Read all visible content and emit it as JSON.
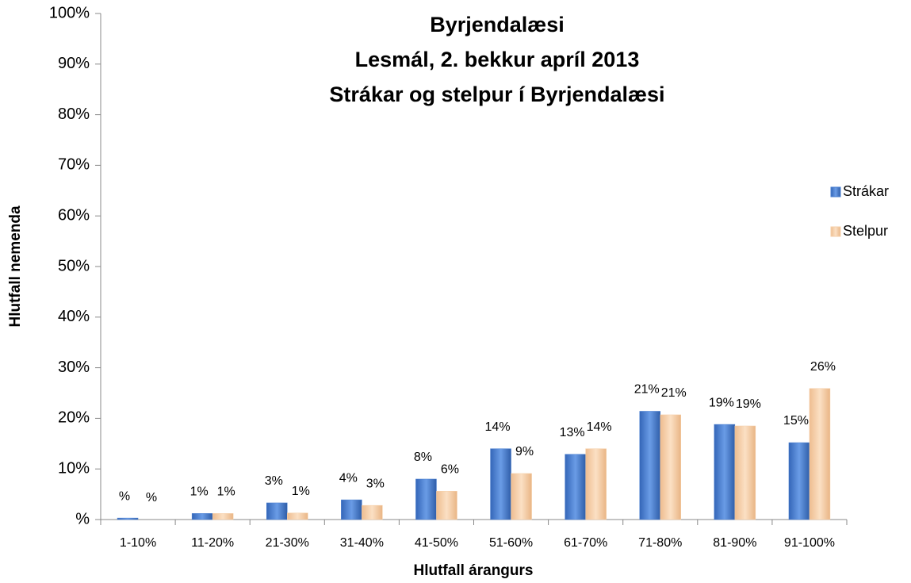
{
  "chart_data": {
    "type": "bar",
    "title": [
      "Byrjendalæsi",
      "Lesmál, 2. bekkur apríl 2013",
      "Strákar og stelpur í Byrjendalæsi"
    ],
    "y_label": "Hlutfall nemenda",
    "x_label": "Hlutfall árangurs",
    "categories": [
      "1-10%",
      "11-20%",
      "21-30%",
      "31-40%",
      "41-50%",
      "51-60%",
      "61-70%",
      "71-80%",
      "81-90%",
      "91-100%"
    ],
    "series": [
      {
        "name": "Strákar",
        "color": "#4a7fd0",
        "values": [
          0.3,
          1.2,
          3.3,
          3.9,
          8.0,
          14.0,
          12.9,
          21.4,
          18.8,
          15.2
        ],
        "value_labels": [
          "%",
          "1%",
          "3%",
          "4%",
          "8%",
          "14%",
          "13%",
          "21%",
          "19%",
          "15%"
        ]
      },
      {
        "name": "Stelpur",
        "color": "#f6cfa8",
        "values": [
          0,
          1.2,
          1.3,
          2.8,
          5.6,
          9.1,
          14.0,
          20.7,
          18.5,
          25.9
        ],
        "value_labels": [
          "%",
          "1%",
          "1%",
          "3%",
          "6%",
          "9%",
          "14%",
          "21%",
          "19%",
          "26%"
        ]
      }
    ],
    "ylim": [
      0,
      100
    ],
    "yticks": [
      {
        "value": 0,
        "label": "%"
      },
      {
        "value": 10,
        "label": "10%"
      },
      {
        "value": 20,
        "label": "20%"
      },
      {
        "value": 30,
        "label": "30%"
      },
      {
        "value": 40,
        "label": "40%"
      },
      {
        "value": 50,
        "label": "50%"
      },
      {
        "value": 60,
        "label": "60%"
      },
      {
        "value": 70,
        "label": "70%"
      },
      {
        "value": 80,
        "label": "80%"
      },
      {
        "value": 90,
        "label": "90%"
      },
      {
        "value": 100,
        "label": "100%"
      }
    ],
    "legend": "right"
  }
}
